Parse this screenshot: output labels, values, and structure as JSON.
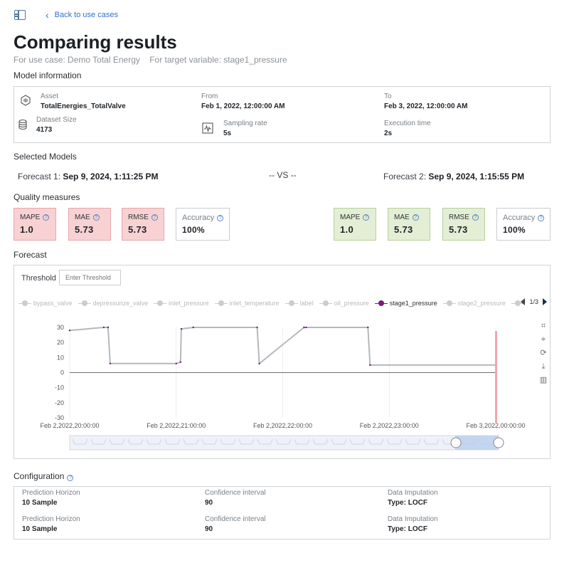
{
  "nav": {
    "back_label": "Back to use cases"
  },
  "page": {
    "title": "Comparing results",
    "use_case": "For use case: Demo Total Energy",
    "target_variable": "For target variable: stage1_pressure"
  },
  "model_info": {
    "heading": "Model information",
    "asset_label": "Asset",
    "asset_value": "TotalEnergies_TotalValve",
    "from_label": "From",
    "from_value": "Feb 1, 2022, 12:00:00 AM",
    "to_label": "To",
    "to_value": "Feb 3, 2022, 12:00:00 AM",
    "dataset_label": "Dataset Size",
    "dataset_value": "4173",
    "sampling_label": "Sampling rate",
    "sampling_value": "5s",
    "exec_label": "Execution time",
    "exec_value": "2s"
  },
  "selected_models": {
    "heading": "Selected Models",
    "f1_label": "Forecast 1:",
    "f1_value": "Sep 9, 2024, 1:11:25 PM",
    "vs": "-- VS --",
    "f2_label": "Forecast 2:",
    "f2_value": "Sep 9, 2024, 1:15:55 PM"
  },
  "quality": {
    "heading": "Quality measures",
    "left": [
      {
        "label": "MAPE",
        "value": "1.0"
      },
      {
        "label": "MAE",
        "value": "5.73"
      },
      {
        "label": "RMSE",
        "value": "5.73"
      },
      {
        "label": "Accuracy",
        "value": "100%"
      }
    ],
    "right": [
      {
        "label": "MAPE",
        "value": "1.0"
      },
      {
        "label": "MAE",
        "value": "5.73"
      },
      {
        "label": "RMSE",
        "value": "5.73"
      },
      {
        "label": "Accuracy",
        "value": "100%"
      }
    ],
    "colors": {
      "bad_bg": "#f8d1d3",
      "good_bg": "#e3eed5"
    }
  },
  "forecast": {
    "heading": "Forecast",
    "threshold_label": "Threshold",
    "threshold_placeholder": "Enter Threshold",
    "legend": [
      "bypass_valve",
      "depressurize_valve",
      "inlet_pressure",
      "inlet_temperature",
      "label",
      "oil_pressure",
      "stage1_pressure",
      "stage2_pressure"
    ],
    "legend_active": "stage1_pressure",
    "pager": "1/3",
    "toolbox_icons": [
      "zoom-select-icon",
      "zoom-reset-icon",
      "restore-icon",
      "download-icon",
      "bar-chart-icon"
    ]
  },
  "chart_data": {
    "type": "line",
    "series": [
      {
        "name": "stage1_pressure",
        "color": "#7a1a7a",
        "x": [
          0,
          0.08,
          0.09,
          0.095,
          0.25,
          0.26,
          0.262,
          0.29,
          0.44,
          0.445,
          0.55,
          0.555,
          0.7,
          0.705,
          1.0
        ],
        "y": [
          28,
          30,
          30,
          6,
          6,
          7,
          29,
          30,
          30,
          6,
          30,
          30,
          30,
          5,
          5
        ]
      }
    ],
    "yticks": [
      30,
      20,
      10,
      0,
      -10,
      -20,
      -30
    ],
    "xticks": [
      "Feb 2,2022,20:00:00",
      "Feb 2,2022,21:00:00",
      "Feb 2,2022,22:00:00",
      "Feb 2,2022,23:00:00",
      "Feb 3,2022,00:00:00"
    ],
    "ylim": [
      -30,
      30
    ],
    "grid": true
  },
  "configuration": {
    "heading": "Configuration",
    "rows": [
      {
        "horizon_label": "Prediction Horizon",
        "horizon_value": "10 Sample",
        "ci_label": "Confidence interval",
        "ci_value": "90",
        "imp_label": "Data Imputation",
        "imp_value": "Type: LOCF"
      },
      {
        "horizon_label": "Prediction Horizon",
        "horizon_value": "10 Sample",
        "ci_label": "Confidence interval",
        "ci_value": "90",
        "imp_label": "Data Imputation",
        "imp_value": "Type: LOCF"
      }
    ]
  }
}
